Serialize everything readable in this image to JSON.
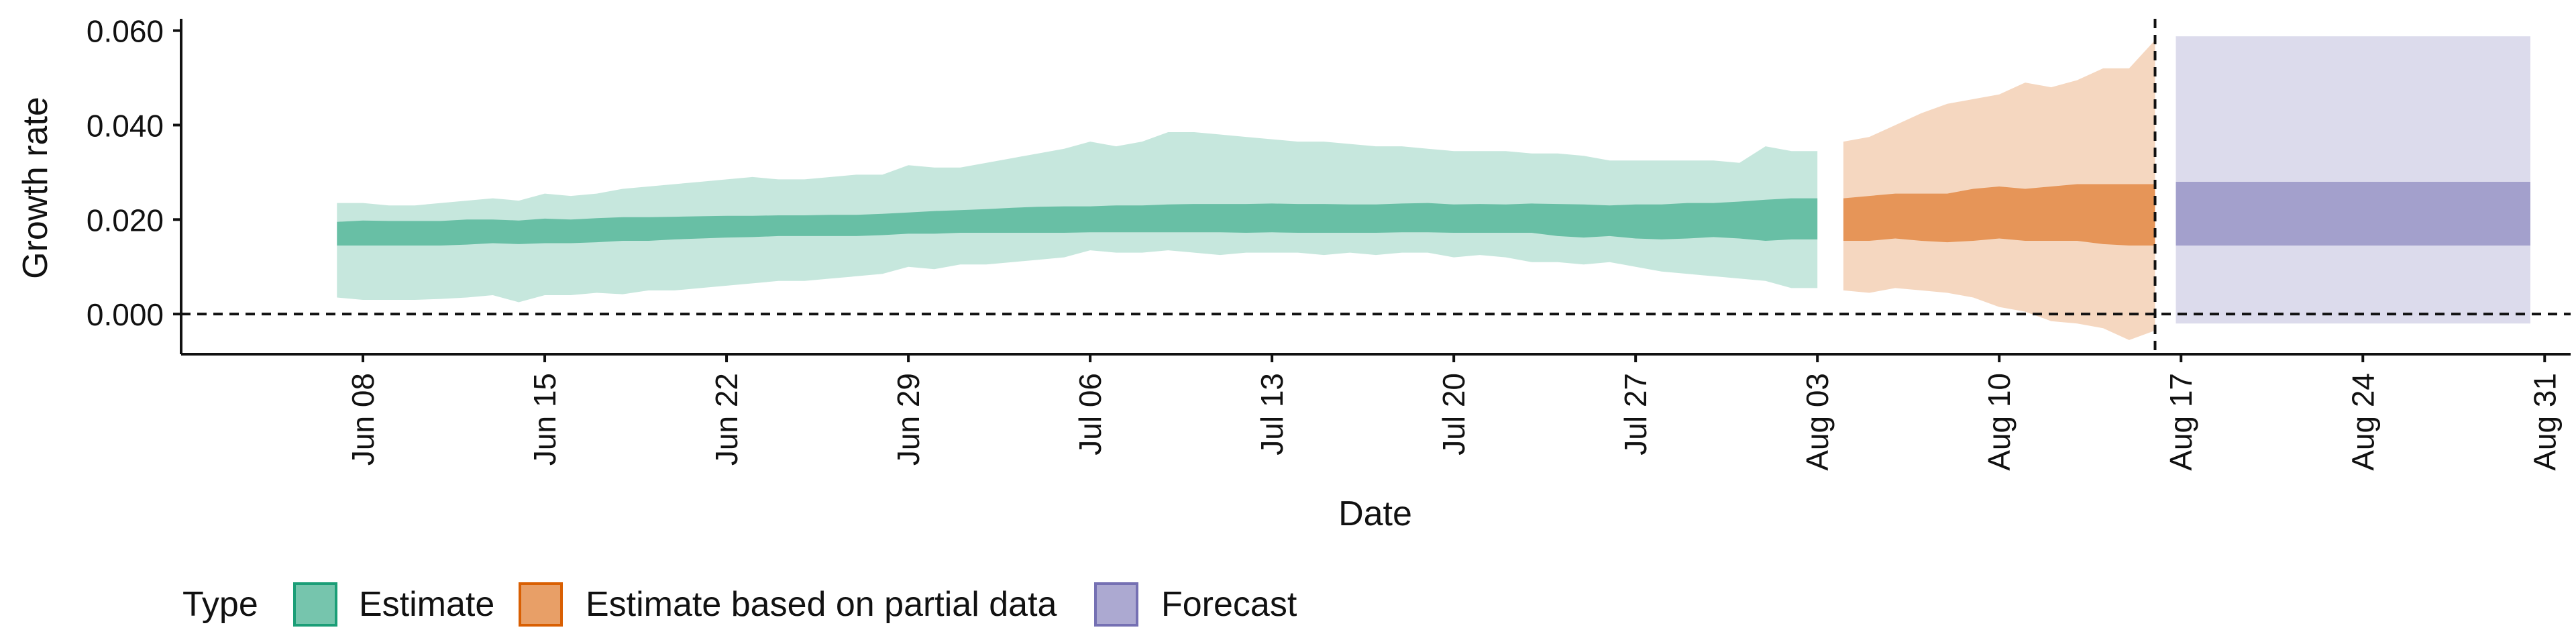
{
  "chart_data": {
    "type": "area",
    "title": "",
    "xlabel": "Date",
    "ylabel": "Growth rate",
    "ylim": [
      -0.0085,
      0.0625
    ],
    "y_ticks": [
      0.0,
      0.02,
      0.04,
      0.06
    ],
    "y_tick_labels": [
      "0.000",
      "0.020",
      "0.040",
      "0.060"
    ],
    "x_range": [
      "2021-06-01",
      "2021-09-01"
    ],
    "x_ticks": [
      "2021-06-08",
      "2021-06-15",
      "2021-06-22",
      "2021-06-29",
      "2021-07-06",
      "2021-07-13",
      "2021-07-20",
      "2021-07-27",
      "2021-08-03",
      "2021-08-10",
      "2021-08-17",
      "2021-08-24",
      "2021-08-31"
    ],
    "x_tick_labels": [
      "Jun 08",
      "Jun 15",
      "Jun 22",
      "Jun 29",
      "Jul 06",
      "Jul 13",
      "Jul 20",
      "Jul 27",
      "Aug 03",
      "Aug 10",
      "Aug 17",
      "Aug 24",
      "Aug 31"
    ],
    "reference_lines": {
      "horizontal_y": 0.0,
      "vertical_x": "2021-08-16"
    },
    "legend": {
      "title": "Type",
      "position": "bottom"
    },
    "colors": {
      "Estimate": "#1b9e77",
      "Estimate based on partial data": "#d95f02",
      "Forecast": "#7570b3"
    },
    "series": [
      {
        "name": "Estimate",
        "x": [
          "2021-06-07",
          "2021-06-08",
          "2021-06-09",
          "2021-06-10",
          "2021-06-11",
          "2021-06-12",
          "2021-06-13",
          "2021-06-14",
          "2021-06-15",
          "2021-06-16",
          "2021-06-17",
          "2021-06-18",
          "2021-06-19",
          "2021-06-20",
          "2021-06-21",
          "2021-06-22",
          "2021-06-23",
          "2021-06-24",
          "2021-06-25",
          "2021-06-26",
          "2021-06-27",
          "2021-06-28",
          "2021-06-29",
          "2021-06-30",
          "2021-07-01",
          "2021-07-02",
          "2021-07-03",
          "2021-07-04",
          "2021-07-05",
          "2021-07-06",
          "2021-07-07",
          "2021-07-08",
          "2021-07-09",
          "2021-07-10",
          "2021-07-11",
          "2021-07-12",
          "2021-07-13",
          "2021-07-14",
          "2021-07-15",
          "2021-07-16",
          "2021-07-17",
          "2021-07-18",
          "2021-07-19",
          "2021-07-20",
          "2021-07-21",
          "2021-07-22",
          "2021-07-23",
          "2021-07-24",
          "2021-07-25",
          "2021-07-26",
          "2021-07-27",
          "2021-07-28",
          "2021-07-29",
          "2021-07-30",
          "2021-07-31",
          "2021-08-01",
          "2021-08-02",
          "2021-08-03"
        ],
        "lower_90": [
          0.0035,
          0.003,
          0.003,
          0.003,
          0.0032,
          0.0035,
          0.004,
          0.0025,
          0.004,
          0.004,
          0.0045,
          0.0042,
          0.005,
          0.005,
          0.0055,
          0.006,
          0.0065,
          0.007,
          0.007,
          0.0075,
          0.008,
          0.0085,
          0.01,
          0.0095,
          0.0105,
          0.0105,
          0.011,
          0.0115,
          0.012,
          0.0135,
          0.013,
          0.013,
          0.0135,
          0.013,
          0.0125,
          0.013,
          0.013,
          0.013,
          0.0125,
          0.013,
          0.0125,
          0.013,
          0.013,
          0.012,
          0.0125,
          0.012,
          0.011,
          0.011,
          0.0105,
          0.011,
          0.01,
          0.009,
          0.0085,
          0.008,
          0.0075,
          0.007,
          0.0055,
          0.0055
        ],
        "upper_90": [
          0.0235,
          0.0235,
          0.023,
          0.023,
          0.0235,
          0.024,
          0.0245,
          0.024,
          0.0255,
          0.025,
          0.0255,
          0.0265,
          0.027,
          0.0275,
          0.028,
          0.0285,
          0.029,
          0.0285,
          0.0285,
          0.029,
          0.0295,
          0.0295,
          0.0315,
          0.031,
          0.031,
          0.032,
          0.033,
          0.034,
          0.035,
          0.0365,
          0.0355,
          0.0365,
          0.0385,
          0.0385,
          0.038,
          0.0375,
          0.037,
          0.0365,
          0.0365,
          0.036,
          0.0355,
          0.0355,
          0.035,
          0.0345,
          0.0345,
          0.0345,
          0.034,
          0.034,
          0.0335,
          0.0325,
          0.0325,
          0.0325,
          0.0325,
          0.0325,
          0.032,
          0.0355,
          0.0345,
          0.0345
        ],
        "lower_50": [
          0.0145,
          0.0145,
          0.0145,
          0.0145,
          0.0145,
          0.0147,
          0.015,
          0.0148,
          0.015,
          0.015,
          0.0152,
          0.0155,
          0.0155,
          0.0158,
          0.016,
          0.0162,
          0.0163,
          0.0165,
          0.0165,
          0.0165,
          0.0165,
          0.0167,
          0.017,
          0.017,
          0.0172,
          0.0172,
          0.0172,
          0.0172,
          0.0172,
          0.0173,
          0.0173,
          0.0173,
          0.0173,
          0.0173,
          0.0173,
          0.0172,
          0.0173,
          0.0172,
          0.0172,
          0.0172,
          0.0172,
          0.0173,
          0.0173,
          0.0172,
          0.0172,
          0.0172,
          0.0172,
          0.0165,
          0.0162,
          0.0165,
          0.016,
          0.0158,
          0.016,
          0.0163,
          0.016,
          0.0155,
          0.0158,
          0.0158
        ],
        "upper_50": [
          0.0195,
          0.0198,
          0.0197,
          0.0197,
          0.0197,
          0.02,
          0.02,
          0.0198,
          0.0202,
          0.02,
          0.0203,
          0.0205,
          0.0205,
          0.0206,
          0.0207,
          0.0208,
          0.0208,
          0.0209,
          0.0209,
          0.021,
          0.021,
          0.0212,
          0.0215,
          0.0218,
          0.022,
          0.0222,
          0.0225,
          0.0227,
          0.0228,
          0.0228,
          0.023,
          0.023,
          0.0232,
          0.0233,
          0.0233,
          0.0233,
          0.0234,
          0.0233,
          0.0233,
          0.0232,
          0.0232,
          0.0234,
          0.0235,
          0.0232,
          0.0233,
          0.0232,
          0.0234,
          0.0233,
          0.0232,
          0.023,
          0.0232,
          0.0232,
          0.0235,
          0.0235,
          0.0238,
          0.0242,
          0.0245,
          0.0245
        ]
      },
      {
        "name": "Estimate based on partial data",
        "x": [
          "2021-08-04",
          "2021-08-05",
          "2021-08-06",
          "2021-08-07",
          "2021-08-08",
          "2021-08-09",
          "2021-08-10",
          "2021-08-11",
          "2021-08-12",
          "2021-08-13",
          "2021-08-14",
          "2021-08-15",
          "2021-08-16"
        ],
        "lower_90": [
          0.005,
          0.0045,
          0.0055,
          0.005,
          0.0045,
          0.0035,
          0.0015,
          0.0005,
          -0.0015,
          -0.002,
          -0.003,
          -0.0055,
          -0.0035
        ],
        "upper_90": [
          0.0365,
          0.0375,
          0.04,
          0.0425,
          0.0445,
          0.0455,
          0.0465,
          0.049,
          0.048,
          0.0495,
          0.052,
          0.052,
          0.058
        ],
        "lower_50": [
          0.0155,
          0.0155,
          0.016,
          0.0155,
          0.0152,
          0.0155,
          0.016,
          0.0155,
          0.0155,
          0.0155,
          0.0148,
          0.0145,
          0.0145
        ],
        "upper_50": [
          0.0245,
          0.025,
          0.0255,
          0.0255,
          0.0255,
          0.0265,
          0.027,
          0.0265,
          0.027,
          0.0275,
          0.0275,
          0.0275,
          0.0275
        ]
      },
      {
        "name": "Forecast",
        "x": [
          "2021-08-17",
          "2021-08-30"
        ],
        "lower_90": [
          -0.002,
          -0.002
        ],
        "upper_90": [
          0.0588,
          0.0588
        ],
        "lower_50": [
          0.0145,
          0.0145
        ],
        "upper_50": [
          0.028,
          0.028
        ]
      }
    ]
  }
}
